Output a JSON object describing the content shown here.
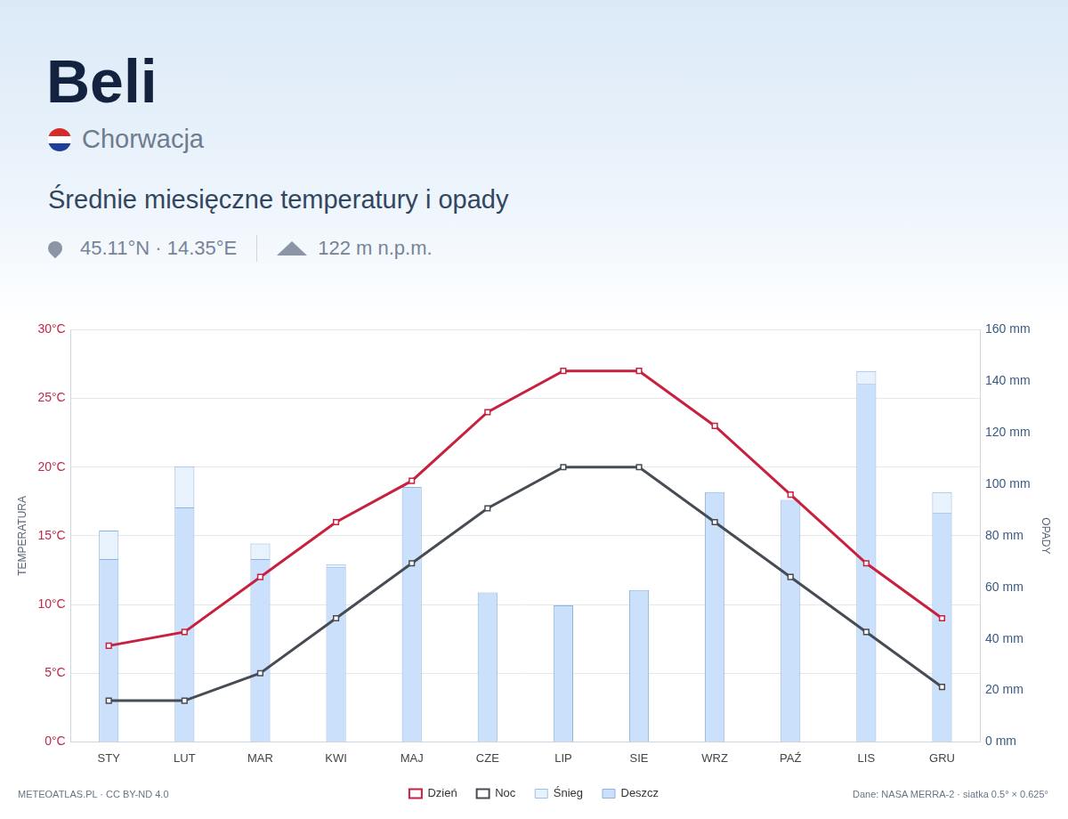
{
  "chart_data": {
    "type": "combo",
    "title": "Beli",
    "subtitle": "Chorwacja",
    "heading": "Średnie miesięczne temperatury i opady",
    "location": "45.11°N · 14.35°E",
    "elevation": "122 m n.p.m.",
    "credit": "METEOATLAS.PL · CC BY-ND 4.0",
    "source": "Dane: NASA MERRA-2 · siatka 0.5° × 0.625°",
    "ylabel": "TEMPERATURA",
    "y2label": "OPADY",
    "categories": [
      "STY",
      "LUT",
      "MAR",
      "KWI",
      "MAJ",
      "CZE",
      "LIP",
      "SIE",
      "WRZ",
      "PAŹ",
      "LIS",
      "GRU"
    ],
    "ylim": [
      0,
      30
    ],
    "yticks": [
      {
        "value": 0,
        "label": "0°C"
      },
      {
        "value": 5,
        "label": "5°C"
      },
      {
        "value": 10,
        "label": "10°C"
      },
      {
        "value": 15,
        "label": "15°C"
      },
      {
        "value": 20,
        "label": "20°C"
      },
      {
        "value": 25,
        "label": "25°C"
      },
      {
        "value": 30,
        "label": "30°C"
      }
    ],
    "y2lim": [
      0,
      160
    ],
    "y2ticks": [
      {
        "value": 0,
        "label": "0 mm"
      },
      {
        "value": 20,
        "label": "20 mm"
      },
      {
        "value": 40,
        "label": "40 mm"
      },
      {
        "value": 60,
        "label": "60 mm"
      },
      {
        "value": 80,
        "label": "80 mm"
      },
      {
        "value": 100,
        "label": "100 mm"
      },
      {
        "value": 120,
        "label": "120 mm"
      },
      {
        "value": 140,
        "label": "140 mm"
      },
      {
        "value": 160,
        "label": "160 mm"
      }
    ],
    "grid": true,
    "legend": "bottom",
    "stacked": true,
    "series": [
      {
        "name": "Dzień",
        "type": "line",
        "color": "#c8203f",
        "marker": "square",
        "values": [
          7,
          8,
          12,
          16,
          19,
          24,
          27,
          27,
          23,
          18,
          13,
          9
        ]
      },
      {
        "name": "Noc",
        "type": "line",
        "color": "#474c54",
        "marker": "square",
        "values": [
          3,
          3,
          5,
          9,
          13,
          17,
          20,
          20,
          16,
          12,
          8,
          4
        ]
      },
      {
        "name": "Śnieg",
        "type": "bar",
        "axis": "y2",
        "color": "#e8f2fd",
        "values": [
          11,
          16,
          6,
          1,
          0,
          0,
          0,
          0,
          0,
          0,
          5,
          8
        ]
      },
      {
        "name": "Deszcz",
        "type": "bar",
        "axis": "y2",
        "color": "#cbe0fa",
        "values": [
          71,
          91,
          71,
          68,
          99,
          58,
          53,
          59,
          97,
          94,
          139,
          89
        ]
      }
    ]
  }
}
